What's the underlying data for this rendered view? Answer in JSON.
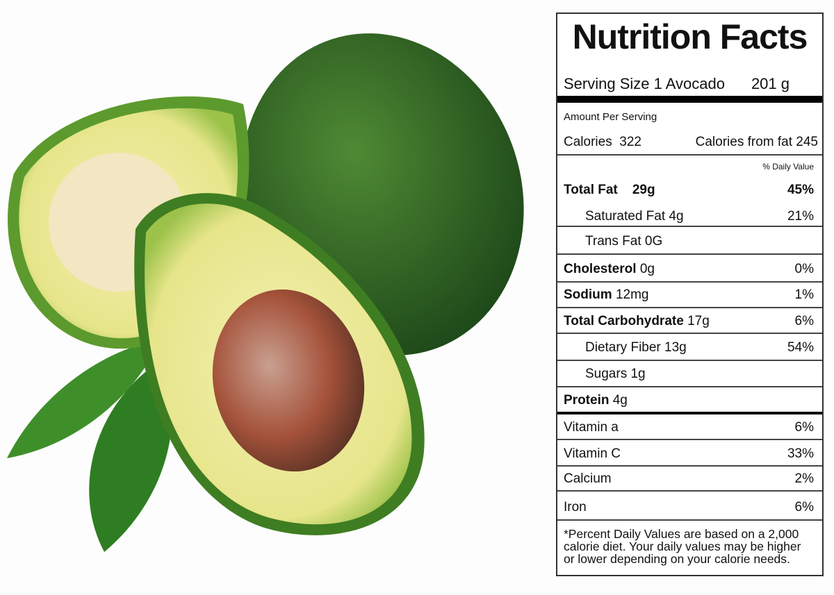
{
  "label": {
    "title": "Nutrition Facts",
    "serving_size": "Serving Size 1 Avocado",
    "serving_weight": "201 g",
    "amount_per_serving": "Amount Per Serving",
    "calories": "Calories  322",
    "calories_from_fat": "Calories from fat 245",
    "daily_value_header": "% Daily Value",
    "rows": [
      {
        "label": "Total Fat    29g",
        "dv": "45%"
      },
      {
        "label": "Saturated Fat 4g",
        "dv": "21%"
      },
      {
        "label": "Trans Fat 0G",
        "dv": ""
      },
      {
        "label": "Cholesterol",
        "amount": "0g",
        "dv": "0%"
      },
      {
        "label": "Sodium",
        "amount": "12mg",
        "dv": "1%"
      },
      {
        "label": "Total Carbohydrate",
        "amount": "17g",
        "dv": "6%"
      },
      {
        "label": "Dietary Fiber 13g",
        "dv": "54%"
      },
      {
        "label": "Sugars 1g",
        "dv": ""
      },
      {
        "label": "Protein",
        "amount": "4g",
        "dv": ""
      },
      {
        "label": "Vitamin a",
        "dv": "6%"
      },
      {
        "label": "Vitamin C",
        "dv": "33%"
      },
      {
        "label": "Calcium",
        "dv": "2%"
      },
      {
        "label": "Iron",
        "dv": "6%"
      }
    ],
    "footnote": "*Percent Daily Values are based on a 2,000 calorie diet. Your daily values may be higher or lower depending on your calorie needs."
  }
}
